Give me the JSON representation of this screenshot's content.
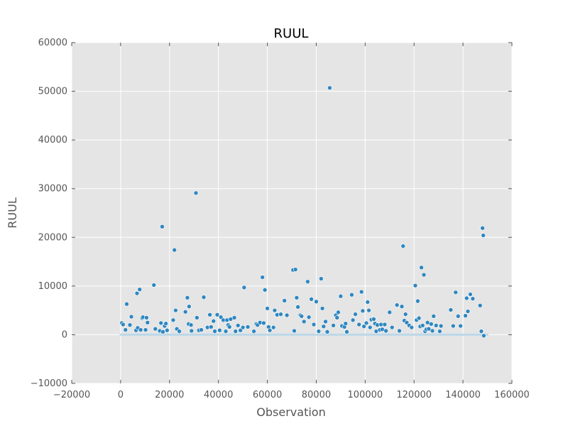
{
  "chart_data": {
    "type": "scatter",
    "title": "RUUL",
    "xlabel": "Observation",
    "ylabel": "RUUL",
    "xlim": [
      -20000,
      160000
    ],
    "ylim": [
      -10000,
      60000
    ],
    "xticks": [
      -20000,
      0,
      20000,
      40000,
      60000,
      80000,
      100000,
      120000,
      140000,
      160000
    ],
    "yticks": [
      -10000,
      0,
      10000,
      20000,
      30000,
      40000,
      50000,
      60000
    ],
    "xtick_labels": [
      "−20000",
      "0",
      "20000",
      "40000",
      "60000",
      "80000",
      "100000",
      "120000",
      "140000",
      "160000"
    ],
    "ytick_labels": [
      "−10000",
      "0",
      "10000",
      "20000",
      "30000",
      "40000",
      "50000",
      "60000"
    ],
    "grid": true,
    "background": "#e5e5e5",
    "grid_color": "#ffffff",
    "point_color": "#2f87c0",
    "baseline_color": "#bcd8e8",
    "baseline_range": [
      0,
      150000
    ],
    "points": [
      [
        500,
        2400
      ],
      [
        1000,
        2100
      ],
      [
        2000,
        1000
      ],
      [
        2500,
        6300
      ],
      [
        3800,
        2000
      ],
      [
        4400,
        3700
      ],
      [
        6300,
        900
      ],
      [
        6700,
        8500
      ],
      [
        7000,
        1400
      ],
      [
        7800,
        9300
      ],
      [
        8200,
        1000
      ],
      [
        8800,
        3400
      ],
      [
        9100,
        3600
      ],
      [
        10200,
        1000
      ],
      [
        10600,
        3500
      ],
      [
        11000,
        2500
      ],
      [
        13600,
        10200
      ],
      [
        14200,
        1200
      ],
      [
        16000,
        800
      ],
      [
        16500,
        2400
      ],
      [
        17000,
        22200
      ],
      [
        17300,
        600
      ],
      [
        18000,
        1800
      ],
      [
        18500,
        2300
      ],
      [
        19000,
        900
      ],
      [
        21500,
        3000
      ],
      [
        22000,
        17400
      ],
      [
        22500,
        5000
      ],
      [
        23000,
        1200
      ],
      [
        24000,
        700
      ],
      [
        26500,
        4700
      ],
      [
        27300,
        7600
      ],
      [
        27800,
        2200
      ],
      [
        28000,
        5800
      ],
      [
        28800,
        2000
      ],
      [
        29000,
        800
      ],
      [
        30800,
        29100
      ],
      [
        31200,
        3500
      ],
      [
        32000,
        900
      ],
      [
        33000,
        1000
      ],
      [
        34000,
        7700
      ],
      [
        35500,
        1500
      ],
      [
        36500,
        4100
      ],
      [
        37000,
        1600
      ],
      [
        38000,
        2800
      ],
      [
        38500,
        700
      ],
      [
        39500,
        4100
      ],
      [
        40500,
        900
      ],
      [
        41000,
        3600
      ],
      [
        42000,
        3000
      ],
      [
        43000,
        700
      ],
      [
        43500,
        3000
      ],
      [
        44000,
        2000
      ],
      [
        44500,
        1600
      ],
      [
        45000,
        3200
      ],
      [
        46500,
        3500
      ],
      [
        47000,
        700
      ],
      [
        48000,
        1900
      ],
      [
        49000,
        900
      ],
      [
        50000,
        1500
      ],
      [
        50500,
        9700
      ],
      [
        52000,
        1600
      ],
      [
        54500,
        700
      ],
      [
        55500,
        2200
      ],
      [
        56000,
        2000
      ],
      [
        57000,
        2500
      ],
      [
        58000,
        11800
      ],
      [
        58500,
        2400
      ],
      [
        59000,
        9200
      ],
      [
        60000,
        5400
      ],
      [
        60500,
        1600
      ],
      [
        61000,
        900
      ],
      [
        62500,
        1500
      ],
      [
        63000,
        5000
      ],
      [
        64000,
        4100
      ],
      [
        65500,
        4200
      ],
      [
        67000,
        7000
      ],
      [
        68000,
        4000
      ],
      [
        70500,
        13300
      ],
      [
        71000,
        800
      ],
      [
        71500,
        13400
      ],
      [
        72000,
        7600
      ],
      [
        72500,
        5700
      ],
      [
        73500,
        4000
      ],
      [
        74000,
        3800
      ],
      [
        75000,
        2700
      ],
      [
        76500,
        10900
      ],
      [
        77000,
        3600
      ],
      [
        78000,
        7300
      ],
      [
        79000,
        2100
      ],
      [
        80000,
        6800
      ],
      [
        81000,
        700
      ],
      [
        82000,
        11500
      ],
      [
        82500,
        5400
      ],
      [
        83000,
        1700
      ],
      [
        83800,
        2700
      ],
      [
        84500,
        600
      ],
      [
        85500,
        50700
      ],
      [
        87000,
        1900
      ],
      [
        88000,
        4000
      ],
      [
        88500,
        3500
      ],
      [
        89000,
        4600
      ],
      [
        90000,
        7900
      ],
      [
        90500,
        1800
      ],
      [
        91500,
        1600
      ],
      [
        92000,
        2300
      ],
      [
        92500,
        600
      ],
      [
        94500,
        8200
      ],
      [
        95000,
        3000
      ],
      [
        96000,
        4200
      ],
      [
        97500,
        2100
      ],
      [
        98500,
        8800
      ],
      [
        99000,
        4900
      ],
      [
        99500,
        1700
      ],
      [
        100500,
        2400
      ],
      [
        101000,
        6700
      ],
      [
        101500,
        5000
      ],
      [
        102000,
        1500
      ],
      [
        102500,
        3100
      ],
      [
        103500,
        3200
      ],
      [
        104000,
        2300
      ],
      [
        104500,
        700
      ],
      [
        105000,
        2000
      ],
      [
        106000,
        1000
      ],
      [
        106500,
        2100
      ],
      [
        107000,
        1100
      ],
      [
        108000,
        2100
      ],
      [
        108500,
        800
      ],
      [
        110000,
        4600
      ],
      [
        111000,
        1500
      ],
      [
        113000,
        6100
      ],
      [
        114000,
        800
      ],
      [
        115000,
        5800
      ],
      [
        115500,
        18200
      ],
      [
        116000,
        2900
      ],
      [
        116500,
        4200
      ],
      [
        117000,
        2500
      ],
      [
        118000,
        1900
      ],
      [
        119000,
        1500
      ],
      [
        120500,
        10100
      ],
      [
        121000,
        3000
      ],
      [
        121500,
        6900
      ],
      [
        122000,
        3400
      ],
      [
        122500,
        1700
      ],
      [
        123000,
        13800
      ],
      [
        123500,
        1900
      ],
      [
        124000,
        12300
      ],
      [
        124500,
        700
      ],
      [
        125000,
        1100
      ],
      [
        125500,
        2500
      ],
      [
        126000,
        1200
      ],
      [
        127000,
        2200
      ],
      [
        127500,
        800
      ],
      [
        128000,
        3800
      ],
      [
        129000,
        1900
      ],
      [
        130500,
        700
      ],
      [
        131000,
        1800
      ],
      [
        135000,
        5100
      ],
      [
        136000,
        1800
      ],
      [
        137000,
        8700
      ],
      [
        138000,
        3800
      ],
      [
        139000,
        1800
      ],
      [
        141000,
        3900
      ],
      [
        141500,
        7500
      ],
      [
        142000,
        4800
      ],
      [
        143000,
        8300
      ],
      [
        144000,
        7400
      ],
      [
        147000,
        6000
      ],
      [
        147500,
        700
      ],
      [
        148000,
        21900
      ],
      [
        148300,
        20400
      ],
      [
        148500,
        -200
      ]
    ]
  }
}
